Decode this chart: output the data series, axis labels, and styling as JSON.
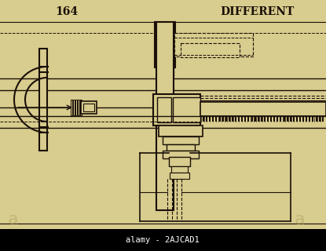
{
  "bg_color": "#d8cc8e",
  "line_color": "#1a1008",
  "page_num": "164",
  "title_text": "DIFFERENT",
  "watermark_text": "alamy - 2AJCAD1",
  "fig_width": 4.15,
  "fig_height": 3.2,
  "dpi": 100
}
